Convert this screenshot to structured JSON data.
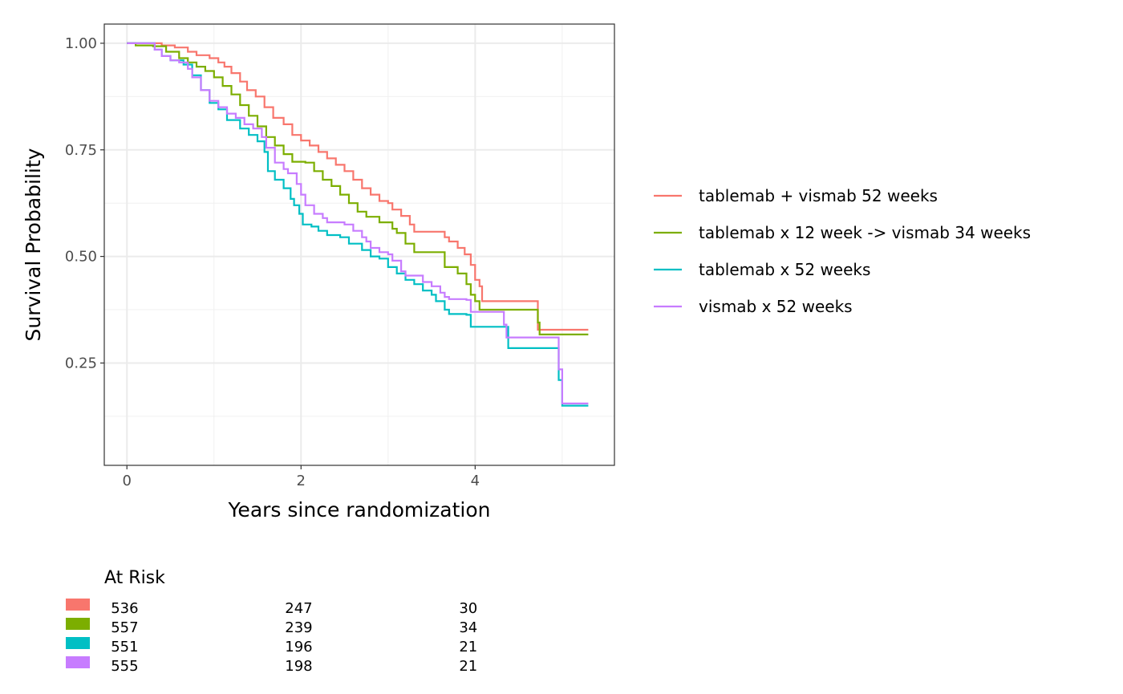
{
  "chart_data": {
    "type": "line",
    "title": "",
    "xlabel": "Years since randomization",
    "ylabel": "Survival Probability",
    "xlim": [
      -0.26,
      5.6
    ],
    "ylim": [
      0.01,
      1.045
    ],
    "x_ticks": [
      0,
      2,
      4
    ],
    "x_tick_labels": [
      "0",
      "2",
      "4"
    ],
    "y_ticks": [
      0.25,
      0.5,
      0.75,
      1.0
    ],
    "y_tick_labels": [
      "0.25",
      "0.50",
      "0.75",
      "1.00"
    ],
    "grid": true,
    "legend_position": "right",
    "series": [
      {
        "name": "tablemab + vismab 52 weeks",
        "color": "#F8766D",
        "points": [
          [
            0,
            1.0
          ],
          [
            0.25,
            1.0
          ],
          [
            0.4,
            0.995
          ],
          [
            0.55,
            0.99
          ],
          [
            0.7,
            0.98
          ],
          [
            0.8,
            0.972
          ],
          [
            0.95,
            0.965
          ],
          [
            1.05,
            0.955
          ],
          [
            1.12,
            0.945
          ],
          [
            1.2,
            0.93
          ],
          [
            1.3,
            0.91
          ],
          [
            1.38,
            0.89
          ],
          [
            1.48,
            0.875
          ],
          [
            1.58,
            0.85
          ],
          [
            1.68,
            0.825
          ],
          [
            1.8,
            0.81
          ],
          [
            1.9,
            0.785
          ],
          [
            2.0,
            0.772
          ],
          [
            2.1,
            0.76
          ],
          [
            2.2,
            0.745
          ],
          [
            2.3,
            0.73
          ],
          [
            2.4,
            0.715
          ],
          [
            2.5,
            0.7
          ],
          [
            2.6,
            0.68
          ],
          [
            2.7,
            0.66
          ],
          [
            2.8,
            0.645
          ],
          [
            2.9,
            0.63
          ],
          [
            3.0,
            0.625
          ],
          [
            3.05,
            0.61
          ],
          [
            3.15,
            0.595
          ],
          [
            3.25,
            0.575
          ],
          [
            3.3,
            0.558
          ],
          [
            3.6,
            0.558
          ],
          [
            3.65,
            0.545
          ],
          [
            3.7,
            0.535
          ],
          [
            3.8,
            0.52
          ],
          [
            3.88,
            0.505
          ],
          [
            3.95,
            0.48
          ],
          [
            4.0,
            0.445
          ],
          [
            4.05,
            0.43
          ],
          [
            4.08,
            0.395
          ],
          [
            4.7,
            0.395
          ],
          [
            4.72,
            0.328
          ],
          [
            5.3,
            0.328
          ]
        ]
      },
      {
        "name": "tablemab x 12 week -> vismab 34 weeks",
        "color": "#7CAE00",
        "points": [
          [
            0,
            1.0
          ],
          [
            0.1,
            0.995
          ],
          [
            0.3,
            0.993
          ],
          [
            0.45,
            0.98
          ],
          [
            0.6,
            0.965
          ],
          [
            0.7,
            0.955
          ],
          [
            0.8,
            0.945
          ],
          [
            0.9,
            0.935
          ],
          [
            1.0,
            0.92
          ],
          [
            1.1,
            0.9
          ],
          [
            1.2,
            0.88
          ],
          [
            1.3,
            0.855
          ],
          [
            1.4,
            0.83
          ],
          [
            1.5,
            0.805
          ],
          [
            1.6,
            0.78
          ],
          [
            1.7,
            0.76
          ],
          [
            1.8,
            0.74
          ],
          [
            1.9,
            0.722
          ],
          [
            2.05,
            0.72
          ],
          [
            2.15,
            0.7
          ],
          [
            2.25,
            0.68
          ],
          [
            2.35,
            0.665
          ],
          [
            2.45,
            0.645
          ],
          [
            2.55,
            0.625
          ],
          [
            2.65,
            0.605
          ],
          [
            2.75,
            0.593
          ],
          [
            2.9,
            0.58
          ],
          [
            3.05,
            0.565
          ],
          [
            3.1,
            0.555
          ],
          [
            3.2,
            0.53
          ],
          [
            3.3,
            0.51
          ],
          [
            3.6,
            0.51
          ],
          [
            3.65,
            0.475
          ],
          [
            3.8,
            0.46
          ],
          [
            3.9,
            0.435
          ],
          [
            3.95,
            0.41
          ],
          [
            4.0,
            0.395
          ],
          [
            4.05,
            0.375
          ],
          [
            4.7,
            0.375
          ],
          [
            4.72,
            0.345
          ],
          [
            4.74,
            0.317
          ],
          [
            5.3,
            0.317
          ]
        ]
      },
      {
        "name": "tablemab x 52 weeks",
        "color": "#00BFC4",
        "points": [
          [
            0,
            1.0
          ],
          [
            0.25,
            1.0
          ],
          [
            0.32,
            0.985
          ],
          [
            0.4,
            0.97
          ],
          [
            0.5,
            0.96
          ],
          [
            0.65,
            0.95
          ],
          [
            0.75,
            0.925
          ],
          [
            0.85,
            0.89
          ],
          [
            0.95,
            0.86
          ],
          [
            1.05,
            0.845
          ],
          [
            1.15,
            0.82
          ],
          [
            1.3,
            0.8
          ],
          [
            1.4,
            0.785
          ],
          [
            1.5,
            0.77
          ],
          [
            1.58,
            0.745
          ],
          [
            1.62,
            0.7
          ],
          [
            1.7,
            0.68
          ],
          [
            1.8,
            0.66
          ],
          [
            1.88,
            0.635
          ],
          [
            1.92,
            0.62
          ],
          [
            1.98,
            0.6
          ],
          [
            2.02,
            0.575
          ],
          [
            2.12,
            0.57
          ],
          [
            2.2,
            0.56
          ],
          [
            2.3,
            0.55
          ],
          [
            2.45,
            0.545
          ],
          [
            2.55,
            0.53
          ],
          [
            2.7,
            0.515
          ],
          [
            2.75,
            0.515
          ],
          [
            2.8,
            0.5
          ],
          [
            2.9,
            0.495
          ],
          [
            3.0,
            0.475
          ],
          [
            3.1,
            0.46
          ],
          [
            3.2,
            0.445
          ],
          [
            3.3,
            0.435
          ],
          [
            3.4,
            0.42
          ],
          [
            3.5,
            0.41
          ],
          [
            3.55,
            0.395
          ],
          [
            3.65,
            0.375
          ],
          [
            3.7,
            0.365
          ],
          [
            3.9,
            0.363
          ],
          [
            3.95,
            0.335
          ],
          [
            4.35,
            0.335
          ],
          [
            4.38,
            0.285
          ],
          [
            4.92,
            0.285
          ],
          [
            4.96,
            0.21
          ],
          [
            5.0,
            0.15
          ],
          [
            5.3,
            0.15
          ]
        ]
      },
      {
        "name": "vismab x 52 weeks",
        "color": "#C77CFF",
        "points": [
          [
            0,
            1.0
          ],
          [
            0.25,
            1.0
          ],
          [
            0.32,
            0.985
          ],
          [
            0.4,
            0.97
          ],
          [
            0.5,
            0.96
          ],
          [
            0.6,
            0.955
          ],
          [
            0.7,
            0.94
          ],
          [
            0.75,
            0.92
          ],
          [
            0.85,
            0.89
          ],
          [
            0.95,
            0.865
          ],
          [
            1.05,
            0.85
          ],
          [
            1.15,
            0.835
          ],
          [
            1.25,
            0.825
          ],
          [
            1.35,
            0.81
          ],
          [
            1.45,
            0.8
          ],
          [
            1.55,
            0.78
          ],
          [
            1.6,
            0.755
          ],
          [
            1.7,
            0.72
          ],
          [
            1.8,
            0.705
          ],
          [
            1.85,
            0.695
          ],
          [
            1.95,
            0.67
          ],
          [
            2.0,
            0.645
          ],
          [
            2.05,
            0.62
          ],
          [
            2.15,
            0.6
          ],
          [
            2.25,
            0.59
          ],
          [
            2.3,
            0.58
          ],
          [
            2.5,
            0.575
          ],
          [
            2.6,
            0.56
          ],
          [
            2.7,
            0.545
          ],
          [
            2.75,
            0.535
          ],
          [
            2.8,
            0.52
          ],
          [
            2.9,
            0.51
          ],
          [
            3.0,
            0.505
          ],
          [
            3.05,
            0.49
          ],
          [
            3.15,
            0.465
          ],
          [
            3.2,
            0.455
          ],
          [
            3.35,
            0.455
          ],
          [
            3.4,
            0.44
          ],
          [
            3.5,
            0.43
          ],
          [
            3.6,
            0.415
          ],
          [
            3.65,
            0.405
          ],
          [
            3.7,
            0.4
          ],
          [
            3.9,
            0.398
          ],
          [
            3.95,
            0.37
          ],
          [
            4.3,
            0.37
          ],
          [
            4.33,
            0.34
          ],
          [
            4.36,
            0.31
          ],
          [
            4.92,
            0.31
          ],
          [
            4.96,
            0.235
          ],
          [
            5.0,
            0.155
          ],
          [
            5.3,
            0.155
          ]
        ]
      }
    ]
  },
  "at_risk": {
    "title": "At Risk",
    "time_points": [
      0,
      2,
      4
    ],
    "rows": [
      {
        "color": "#F8766D",
        "values": [
          "536",
          "247",
          "30"
        ]
      },
      {
        "color": "#7CAE00",
        "values": [
          "557",
          "239",
          "34"
        ]
      },
      {
        "color": "#00BFC4",
        "values": [
          "551",
          "196",
          "21"
        ]
      },
      {
        "color": "#C77CFF",
        "values": [
          "555",
          "198",
          "21"
        ]
      }
    ]
  }
}
